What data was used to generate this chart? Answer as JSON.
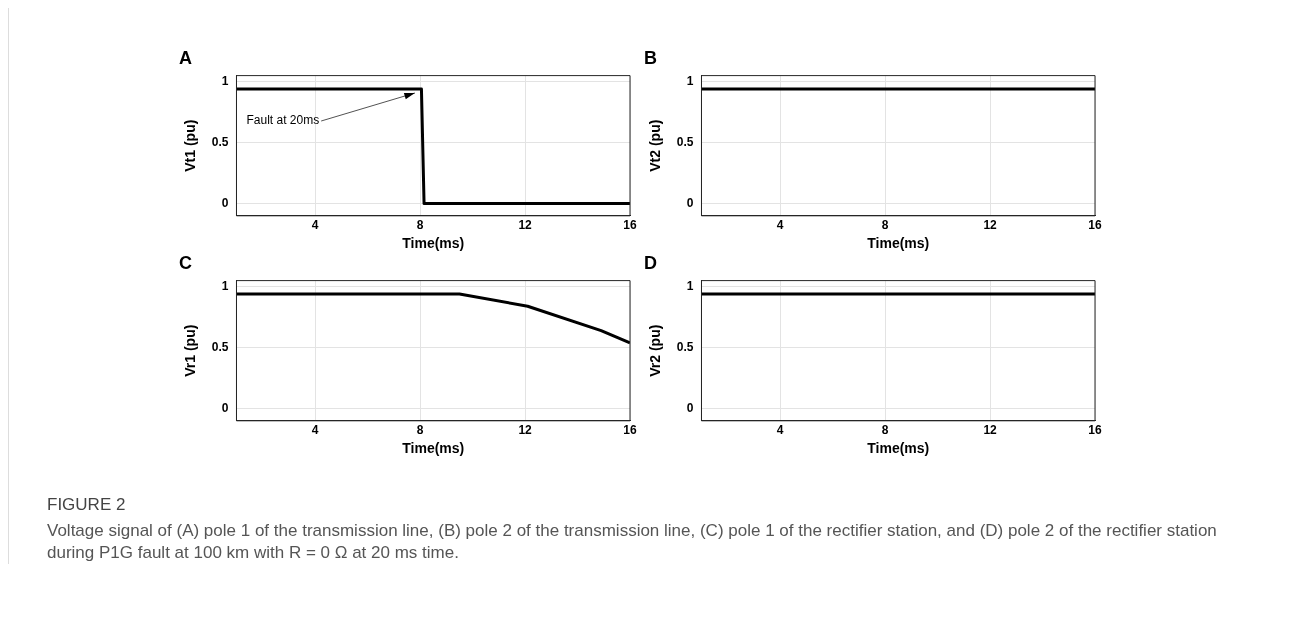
{
  "chart_data": [
    {
      "type": "line",
      "title": "A",
      "xlabel": "Time(ms)",
      "ylabel": "Vt1 (pu)",
      "xlim": [
        1,
        16
      ],
      "xticks": [
        4,
        8,
        12,
        16
      ],
      "ylim": [
        -0.1,
        1.05
      ],
      "yticks": [
        0,
        0.5,
        1
      ],
      "grid": true,
      "series": [
        {
          "color": "#000000",
          "x": [
            1,
            8.05,
            8.15,
            16
          ],
          "values": [
            0.94,
            0.94,
            0,
            0
          ]
        }
      ],
      "annotations": [
        {
          "text": "Fault at 20ms",
          "x": 7.8,
          "y": 0.94
        },
        "FIGURE 2",
        "Voltage signal of (A) pole 1 of the transmission line, (B) pole 2 of the transmission line, (C) pole 1 of the rectifier station, and (D) pole 2 of the rectifier station during P1G fault at 100 km with R = 0 Ω at 20 ms time."
      ]
    },
    {
      "type": "line",
      "title": "B",
      "xlabel": "Time(ms)",
      "ylabel": "Vt2 (pu)",
      "xlim": [
        1,
        16
      ],
      "xticks": [
        4,
        8,
        12,
        16
      ],
      "ylim": [
        -0.1,
        1.05
      ],
      "yticks": [
        0,
        0.5,
        1
      ],
      "grid": true,
      "series": [
        {
          "color": "#000000",
          "x": [
            1,
            16
          ],
          "values": [
            0.94,
            0.94
          ]
        }
      ]
    },
    {
      "type": "line",
      "title": "C",
      "xlabel": "Time(ms)",
      "ylabel": "Vr1 (pu)",
      "xlim": [
        1,
        16
      ],
      "xticks": [
        4,
        8,
        12,
        16
      ],
      "ylim": [
        -0.1,
        1.05
      ],
      "yticks": [
        0,
        0.5,
        1
      ],
      "grid": true,
      "series": [
        {
          "color": "#000000",
          "x": [
            1,
            9.5,
            12.1,
            14.9,
            16
          ],
          "values": [
            0.94,
            0.94,
            0.84,
            0.64,
            0.54
          ]
        }
      ]
    },
    {
      "type": "line",
      "title": "D",
      "xlabel": "Time(ms)",
      "ylabel": "Vr2 (pu)",
      "xlim": [
        1,
        16
      ],
      "xticks": [
        4,
        8,
        12,
        16
      ],
      "ylim": [
        -0.1,
        1.05
      ],
      "yticks": [
        0,
        0.5,
        1
      ],
      "grid": true,
      "series": [
        {
          "color": "#000000",
          "x": [
            1,
            16
          ],
          "values": [
            0.94,
            0.94
          ]
        }
      ]
    }
  ]
}
